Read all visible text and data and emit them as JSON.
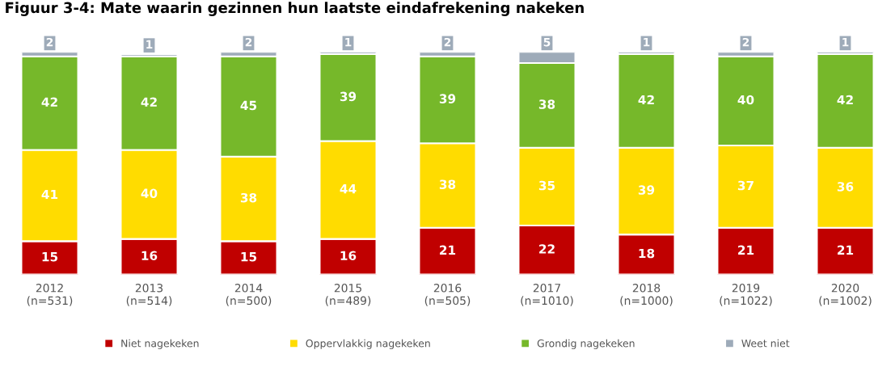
{
  "chart_data": {
    "type": "bar",
    "title": "Figuur 3-4: Mate waarin gezinnen hun laatste eindafrekening nakeken",
    "stacked": true,
    "categories": [
      "2012\n(n=531)",
      "2013\n(n=514)",
      "2014\n(n=500)",
      "2015\n(n=489)",
      "2016\n(n=505)",
      "2017\n(n=1010)",
      "2018\n(n=1000)",
      "2019\n(n=1022)",
      "2020\n(n=1002)"
    ],
    "series": [
      {
        "name": "Niet nagekeken",
        "color": "#c00000",
        "values": [
          15,
          16,
          15,
          16,
          21,
          22,
          18,
          21,
          21
        ]
      },
      {
        "name": "Oppervlakkig nagekeken",
        "color": "#ffdc00",
        "values": [
          41,
          40,
          38,
          44,
          38,
          35,
          39,
          37,
          36
        ]
      },
      {
        "name": "Grondig nagekeken",
        "color": "#76b82a",
        "values": [
          42,
          42,
          45,
          39,
          39,
          38,
          42,
          40,
          42
        ]
      },
      {
        "name": "Weet niet",
        "color": "#9eabb9",
        "values": [
          2,
          1,
          2,
          1,
          2,
          5,
          1,
          2,
          1
        ]
      }
    ],
    "ylim": [
      0,
      100
    ],
    "data_labels": true,
    "tick_labels": "x",
    "grid": false,
    "legend": "bottom"
  }
}
